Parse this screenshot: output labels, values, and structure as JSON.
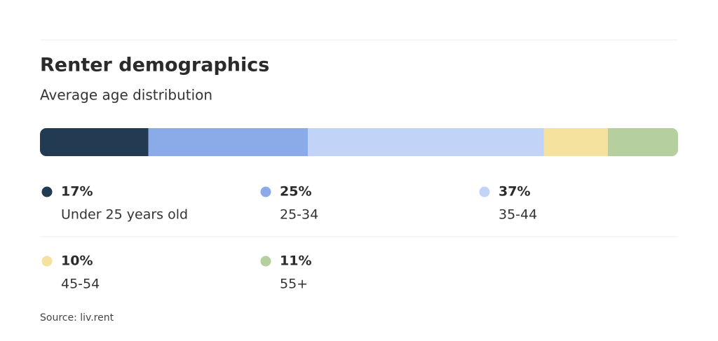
{
  "chart_data": {
    "type": "stacked-bar",
    "title": "Renter demographics",
    "subtitle": "Average age distribution",
    "categories": [
      "Under 25 years old",
      "25-34",
      "35-44",
      "45-54",
      "55+"
    ],
    "values": [
      17,
      25,
      37,
      10,
      11
    ],
    "value_labels": [
      "17%",
      "25%",
      "37%",
      "10%",
      "11%"
    ],
    "colors": [
      "#223a52",
      "#8aaae8",
      "#c1d4f7",
      "#f5e29e",
      "#b6cf9e"
    ],
    "source": "Source: liv.rent"
  }
}
